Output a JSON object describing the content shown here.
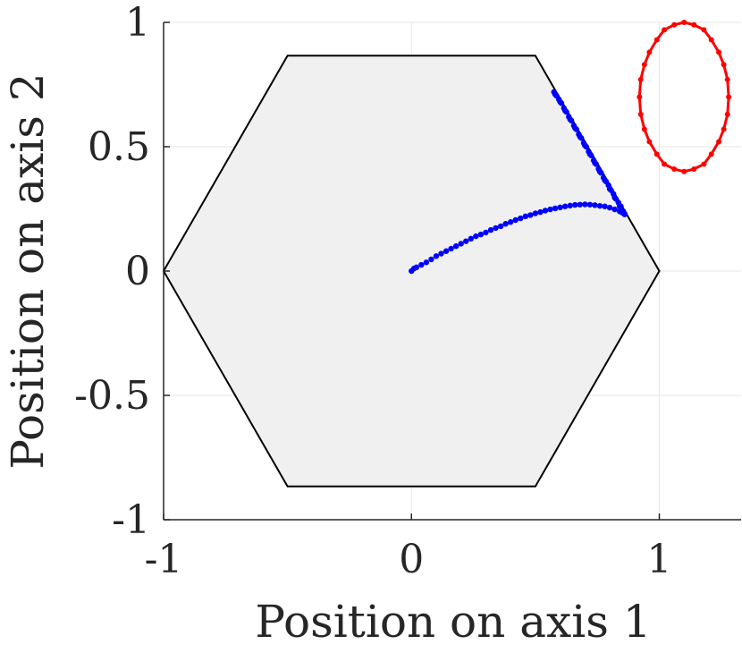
{
  "chart_data": {
    "type": "scatter",
    "xlabel": "Position on axis 1",
    "ylabel": "Position on axis 2",
    "xlim": [
      -1,
      1.33
    ],
    "ylim": [
      -1,
      1
    ],
    "x_ticks": [
      "-1",
      "0",
      "1"
    ],
    "x_tick_values": [
      -1,
      0,
      1
    ],
    "y_ticks": [
      "1",
      "0.5",
      "0",
      "-0.5",
      "-1"
    ],
    "y_tick_values": [
      1,
      0.5,
      0,
      -0.5,
      -1
    ],
    "grid": true,
    "region": {
      "shape": "hexagon",
      "fill": "#f0f0f0",
      "stroke": "#000000",
      "vertices": [
        [
          1,
          0
        ],
        [
          0.5,
          0.866
        ],
        [
          -0.5,
          0.866
        ],
        [
          -1,
          0
        ],
        [
          -0.5,
          -0.866
        ],
        [
          0.5,
          -0.866
        ]
      ]
    },
    "series": [
      {
        "color": "#0000ff",
        "marker": "dot",
        "points": [
          [
            0.0,
            0.0
          ],
          [
            0.01,
            0.01
          ],
          [
            0.02,
            0.015
          ],
          [
            0.04,
            0.025
          ],
          [
            0.06,
            0.035
          ],
          [
            0.08,
            0.047
          ],
          [
            0.1,
            0.06
          ],
          [
            0.12,
            0.07
          ],
          [
            0.14,
            0.08
          ],
          [
            0.16,
            0.09
          ],
          [
            0.18,
            0.1
          ],
          [
            0.2,
            0.11
          ],
          [
            0.22,
            0.12
          ],
          [
            0.24,
            0.13
          ],
          [
            0.26,
            0.14
          ],
          [
            0.28,
            0.147
          ],
          [
            0.3,
            0.155
          ],
          [
            0.32,
            0.165
          ],
          [
            0.34,
            0.173
          ],
          [
            0.36,
            0.18
          ],
          [
            0.38,
            0.19
          ],
          [
            0.4,
            0.197
          ],
          [
            0.42,
            0.205
          ],
          [
            0.44,
            0.212
          ],
          [
            0.46,
            0.22
          ],
          [
            0.48,
            0.225
          ],
          [
            0.5,
            0.232
          ],
          [
            0.52,
            0.237
          ],
          [
            0.54,
            0.243
          ],
          [
            0.56,
            0.248
          ],
          [
            0.58,
            0.252
          ],
          [
            0.6,
            0.256
          ],
          [
            0.62,
            0.26
          ],
          [
            0.64,
            0.263
          ],
          [
            0.66,
            0.266
          ],
          [
            0.68,
            0.267
          ],
          [
            0.7,
            0.268
          ],
          [
            0.72,
            0.267
          ],
          [
            0.74,
            0.265
          ],
          [
            0.76,
            0.262
          ],
          [
            0.78,
            0.26
          ],
          [
            0.8,
            0.255
          ],
          [
            0.82,
            0.248
          ],
          [
            0.84,
            0.24
          ],
          [
            0.85,
            0.235
          ],
          [
            0.86,
            0.23
          ],
          [
            0.855,
            0.24
          ],
          [
            0.845,
            0.26
          ],
          [
            0.835,
            0.275
          ],
          [
            0.825,
            0.29
          ],
          [
            0.815,
            0.31
          ],
          [
            0.805,
            0.325
          ],
          [
            0.795,
            0.345
          ],
          [
            0.785,
            0.36
          ],
          [
            0.775,
            0.375
          ],
          [
            0.765,
            0.395
          ],
          [
            0.755,
            0.41
          ],
          [
            0.745,
            0.43
          ],
          [
            0.735,
            0.445
          ],
          [
            0.725,
            0.465
          ],
          [
            0.715,
            0.48
          ],
          [
            0.705,
            0.5
          ],
          [
            0.695,
            0.515
          ],
          [
            0.685,
            0.535
          ],
          [
            0.675,
            0.55
          ],
          [
            0.665,
            0.57
          ],
          [
            0.655,
            0.585
          ],
          [
            0.645,
            0.605
          ],
          [
            0.635,
            0.62
          ],
          [
            0.625,
            0.64
          ],
          [
            0.615,
            0.655
          ],
          [
            0.605,
            0.675
          ],
          [
            0.595,
            0.69
          ],
          [
            0.585,
            0.705
          ],
          [
            0.575,
            0.72
          ],
          [
            0.58,
            0.71
          ],
          [
            0.6,
            0.68
          ],
          [
            0.62,
            0.645
          ],
          [
            0.64,
            0.61
          ],
          [
            0.66,
            0.575
          ],
          [
            0.68,
            0.54
          ],
          [
            0.7,
            0.505
          ],
          [
            0.72,
            0.47
          ],
          [
            0.74,
            0.435
          ],
          [
            0.76,
            0.4
          ],
          [
            0.78,
            0.365
          ],
          [
            0.8,
            0.33
          ],
          [
            0.82,
            0.295
          ],
          [
            0.84,
            0.26
          ],
          [
            0.86,
            0.228
          ]
        ]
      },
      {
        "color": "#ff0000",
        "marker": "dot-line",
        "closed": true,
        "points": [
          [
            1.1,
            1.0
          ],
          [
            1.14,
            0.99
          ],
          [
            1.18,
            0.97
          ],
          [
            1.21,
            0.93
          ],
          [
            1.24,
            0.88
          ],
          [
            1.26,
            0.83
          ],
          [
            1.275,
            0.77
          ],
          [
            1.28,
            0.7
          ],
          [
            1.275,
            0.63
          ],
          [
            1.26,
            0.57
          ],
          [
            1.24,
            0.52
          ],
          [
            1.21,
            0.47
          ],
          [
            1.18,
            0.43
          ],
          [
            1.14,
            0.41
          ],
          [
            1.1,
            0.4
          ],
          [
            1.06,
            0.41
          ],
          [
            1.02,
            0.43
          ],
          [
            0.99,
            0.47
          ],
          [
            0.96,
            0.52
          ],
          [
            0.94,
            0.57
          ],
          [
            0.925,
            0.63
          ],
          [
            0.92,
            0.7
          ],
          [
            0.925,
            0.77
          ],
          [
            0.94,
            0.83
          ],
          [
            0.96,
            0.88
          ],
          [
            0.99,
            0.93
          ],
          [
            1.02,
            0.97
          ],
          [
            1.06,
            0.99
          ]
        ]
      }
    ]
  }
}
